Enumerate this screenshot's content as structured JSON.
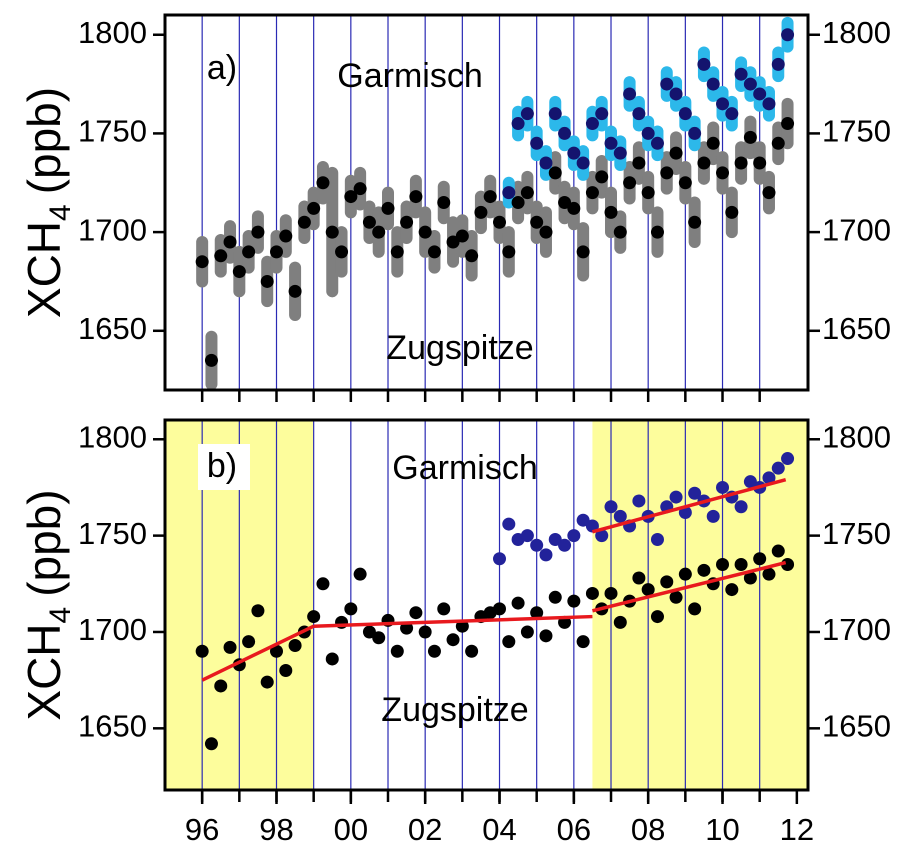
{
  "chart_data": [
    {
      "type": "scatter",
      "panel_label": "a)",
      "ylabel": {
        "main": "XCH",
        "sub": "4",
        "unit": "(ppb)"
      },
      "annotations": [
        {
          "text": "Garmisch",
          "color": "#1a1a9c"
        },
        {
          "text": "Zugspitze",
          "color": "#000000"
        }
      ],
      "xlim": [
        1995,
        2012.3
      ],
      "ylim": [
        1620,
        1810
      ],
      "yticks": [
        1650,
        1700,
        1750,
        1800
      ],
      "xgrid": [
        1996,
        1997,
        1998,
        1999,
        2000,
        2001,
        2002,
        2003,
        2004,
        2005,
        2006,
        2007,
        2008,
        2009,
        2010,
        2011
      ],
      "grid_color": "#2a2ab4",
      "series": [
        {
          "name": "Zugspitze",
          "color": "#000000",
          "error_color": "#7f7f7f",
          "x": [
            1996,
            1996.25,
            1996.5,
            1996.75,
            1997,
            1997.25,
            1997.5,
            1997.75,
            1998,
            1998.25,
            1998.5,
            1998.75,
            1999,
            1999.25,
            1999.5,
            1999.75,
            2000,
            2000.25,
            2000.5,
            2000.75,
            2001,
            2001.25,
            2001.5,
            2001.75,
            2002,
            2002.25,
            2002.5,
            2002.75,
            2003,
            2003.25,
            2003.5,
            2003.75,
            2004,
            2004.25,
            2004.5,
            2004.75,
            2005,
            2005.25,
            2005.5,
            2005.75,
            2006,
            2006.25,
            2006.5,
            2006.75,
            2007,
            2007.25,
            2007.5,
            2007.75,
            2008,
            2008.25,
            2008.5,
            2008.75,
            2009,
            2009.25,
            2009.5,
            2009.75,
            2010,
            2010.25,
            2010.5,
            2010.75,
            2011,
            2011.25,
            2011.5,
            2011.75
          ],
          "values": [
            1685,
            1635,
            1688,
            1695,
            1680,
            1690,
            1700,
            1675,
            1690,
            1698,
            1670,
            1705,
            1712,
            1725,
            1700,
            1690,
            1718,
            1722,
            1705,
            1700,
            1712,
            1690,
            1705,
            1718,
            1700,
            1690,
            1715,
            1695,
            1698,
            1688,
            1710,
            1718,
            1705,
            1690,
            1715,
            1720,
            1705,
            1700,
            1730,
            1715,
            1712,
            1690,
            1720,
            1728,
            1710,
            1700,
            1725,
            1735,
            1720,
            1700,
            1730,
            1740,
            1725,
            1705,
            1735,
            1745,
            1730,
            1710,
            1735,
            1748,
            1735,
            1720,
            1745,
            1755
          ],
          "errors": [
            10,
            12,
            8,
            8,
            10,
            8,
            8,
            10,
            8,
            8,
            12,
            8,
            8,
            8,
            30,
            10,
            8,
            8,
            8,
            10,
            8,
            10,
            8,
            8,
            10,
            8,
            8,
            10,
            8,
            10,
            8,
            8,
            8,
            10,
            8,
            8,
            8,
            10,
            8,
            8,
            8,
            12,
            8,
            8,
            10,
            8,
            8,
            8,
            8,
            10,
            8,
            8,
            8,
            10,
            8,
            8,
            8,
            10,
            8,
            8,
            8,
            8,
            8,
            10
          ]
        },
        {
          "name": "Garmisch",
          "color": "#14146e",
          "error_color": "#2cb8ea",
          "x": [
            2004.25,
            2004.5,
            2004.75,
            2005,
            2005.25,
            2005.5,
            2005.75,
            2006,
            2006.25,
            2006.5,
            2006.75,
            2007,
            2007.25,
            2007.5,
            2007.75,
            2008,
            2008.25,
            2008.5,
            2008.75,
            2009,
            2009.25,
            2009.5,
            2009.75,
            2010,
            2010.25,
            2010.5,
            2010.75,
            2011,
            2011.25,
            2011.5,
            2011.75
          ],
          "values": [
            1720,
            1755,
            1760,
            1745,
            1735,
            1760,
            1750,
            1740,
            1735,
            1755,
            1760,
            1745,
            1740,
            1770,
            1760,
            1750,
            1745,
            1775,
            1770,
            1760,
            1750,
            1785,
            1775,
            1765,
            1760,
            1780,
            1775,
            1770,
            1765,
            1785,
            1800
          ],
          "errors": [
            5,
            6,
            6,
            6,
            6,
            6,
            6,
            6,
            6,
            6,
            6,
            6,
            6,
            6,
            6,
            6,
            6,
            6,
            6,
            6,
            6,
            6,
            6,
            6,
            6,
            6,
            6,
            6,
            6,
            6,
            6
          ]
        }
      ]
    },
    {
      "type": "scatter",
      "panel_label": "b)",
      "ylabel": {
        "main": "XCH",
        "sub": "4",
        "unit": "(ppb)"
      },
      "annotations": [
        {
          "text": "Garmisch",
          "color": "#1a1a9c"
        },
        {
          "text": "Zugspitze",
          "color": "#000000"
        }
      ],
      "xlim": [
        1995,
        2012.3
      ],
      "ylim": [
        1618,
        1810
      ],
      "yticks": [
        1650,
        1700,
        1750,
        1800
      ],
      "xticks": [
        {
          "value": 1996,
          "label": "96"
        },
        {
          "value": 1998,
          "label": "98"
        },
        {
          "value": 2000,
          "label": "00"
        },
        {
          "value": 2002,
          "label": "02"
        },
        {
          "value": 2004,
          "label": "04"
        },
        {
          "value": 2006,
          "label": "06"
        },
        {
          "value": 2008,
          "label": "08"
        },
        {
          "value": 2010,
          "label": "10"
        },
        {
          "value": 2012,
          "label": "12"
        }
      ],
      "xgrid": [
        1996,
        1997,
        1998,
        1999,
        2000,
        2001,
        2002,
        2003,
        2004,
        2005,
        2006,
        2007,
        2008,
        2009,
        2010,
        2011
      ],
      "grid_color": "#2a2ab4",
      "shaded": [
        [
          1995,
          1999
        ],
        [
          2006.5,
          2012.3
        ]
      ],
      "shade_color": "#fdfd9c",
      "series": [
        {
          "name": "Zugspitze",
          "color": "#000000",
          "x": [
            1996,
            1996.25,
            1996.5,
            1996.75,
            1997,
            1997.25,
            1997.5,
            1997.75,
            1998,
            1998.25,
            1998.5,
            1998.75,
            1999,
            1999.25,
            1999.5,
            1999.75,
            2000,
            2000.25,
            2000.5,
            2000.75,
            2001,
            2001.25,
            2001.5,
            2001.75,
            2002,
            2002.25,
            2002.5,
            2002.75,
            2003,
            2003.25,
            2003.5,
            2003.75,
            2004,
            2004.25,
            2004.5,
            2004.75,
            2005,
            2005.25,
            2005.5,
            2005.75,
            2006,
            2006.25,
            2006.5,
            2006.75,
            2007,
            2007.25,
            2007.5,
            2007.75,
            2008,
            2008.25,
            2008.5,
            2008.75,
            2009,
            2009.25,
            2009.5,
            2009.75,
            2010,
            2010.25,
            2010.5,
            2010.75,
            2011,
            2011.25,
            2011.5,
            2011.75
          ],
          "values": [
            1690,
            1642,
            1672,
            1692,
            1683,
            1695,
            1711,
            1674,
            1690,
            1680,
            1693,
            1700,
            1708,
            1725,
            1686,
            1705,
            1712,
            1730,
            1700,
            1697,
            1706,
            1690,
            1702,
            1710,
            1700,
            1690,
            1712,
            1696,
            1703,
            1690,
            1708,
            1710,
            1712,
            1695,
            1715,
            1700,
            1710,
            1698,
            1718,
            1705,
            1716,
            1695,
            1720,
            1712,
            1720,
            1705,
            1716,
            1728,
            1722,
            1708,
            1726,
            1718,
            1730,
            1712,
            1732,
            1725,
            1735,
            1722,
            1735,
            1728,
            1738,
            1730,
            1742,
            1735
          ]
        },
        {
          "name": "Garmisch",
          "color": "#22229a",
          "x": [
            2004,
            2004.25,
            2004.5,
            2004.75,
            2005,
            2005.25,
            2005.5,
            2005.75,
            2006,
            2006.25,
            2006.5,
            2006.75,
            2007,
            2007.25,
            2007.5,
            2007.75,
            2008,
            2008.25,
            2008.5,
            2008.75,
            2009,
            2009.25,
            2009.5,
            2009.75,
            2010,
            2010.25,
            2010.5,
            2010.75,
            2011,
            2011.25,
            2011.5,
            2011.75
          ],
          "values": [
            1738,
            1756,
            1748,
            1750,
            1745,
            1740,
            1748,
            1745,
            1750,
            1758,
            1755,
            1750,
            1765,
            1760,
            1755,
            1768,
            1760,
            1748,
            1765,
            1770,
            1762,
            1772,
            1768,
            1760,
            1775,
            1770,
            1765,
            1778,
            1775,
            1780,
            1785,
            1790
          ]
        }
      ],
      "trends": [
        {
          "color": "#e8191e",
          "x": [
            1996,
            1999
          ],
          "values": [
            1675,
            1703
          ]
        },
        {
          "color": "#e8191e",
          "x": [
            1999,
            2006.5
          ],
          "values": [
            1703,
            1708
          ]
        },
        {
          "color": "#e8191e",
          "x": [
            2006.5,
            2011.7
          ],
          "values": [
            1711,
            1736
          ]
        },
        {
          "color": "#e8191e",
          "x": [
            2006.5,
            2011.7
          ],
          "values": [
            1752,
            1779
          ]
        }
      ]
    }
  ]
}
